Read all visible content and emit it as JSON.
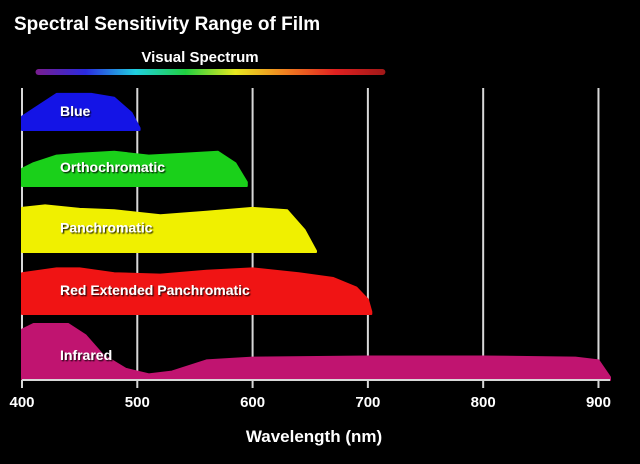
{
  "chart_data": {
    "type": "area",
    "title": "Spectral Sensitivity Range of Film",
    "subtitle": "Visual Spectrum",
    "xlabel": "Wavelength (nm)",
    "ylabel": "",
    "xlim": [
      400,
      910
    ],
    "x_ticks": [
      400,
      500,
      600,
      700,
      800,
      900
    ],
    "x_tick_labels": [
      "400",
      "500",
      "600",
      "700",
      "800",
      "900"
    ],
    "grid": true,
    "legend": "none",
    "background_color": "#000000",
    "text_color": "#ffffff",
    "visual_spectrum": {
      "x_start": 410,
      "x_end": 710,
      "colors": [
        "#7a1d8f",
        "#2a2ae0",
        "#20d0e0",
        "#20d040",
        "#e8e820",
        "#f08020",
        "#e02020",
        "#a01818"
      ]
    },
    "series": [
      {
        "name": "Blue",
        "color": "#1414e6",
        "x": [
          400,
          410,
          430,
          460,
          480,
          495,
          502,
          502,
          400
        ],
        "y": [
          0.35,
          0.55,
          0.95,
          0.95,
          0.85,
          0.45,
          0.05,
          0,
          0
        ]
      },
      {
        "name": "Orthochromatic",
        "color": "#1ad01a",
        "x": [
          400,
          410,
          430,
          450,
          480,
          510,
          540,
          570,
          585,
          595,
          595,
          400
        ],
        "y": [
          0.45,
          0.6,
          0.8,
          0.85,
          0.9,
          0.8,
          0.85,
          0.9,
          0.6,
          0.1,
          0,
          0
        ]
      },
      {
        "name": "Panchromatic",
        "color": "#f0f000",
        "x": [
          400,
          420,
          450,
          480,
          520,
          560,
          600,
          630,
          645,
          655,
          655,
          400
        ],
        "y": [
          0.9,
          0.95,
          0.88,
          0.85,
          0.75,
          0.82,
          0.9,
          0.85,
          0.45,
          0.02,
          0,
          0
        ]
      },
      {
        "name": "Red Extended Panchromatic",
        "color": "#f01414",
        "x": [
          400,
          430,
          450,
          480,
          520,
          560,
          600,
          640,
          670,
          690,
          700,
          703,
          703,
          400
        ],
        "y": [
          0.85,
          0.95,
          0.95,
          0.85,
          0.82,
          0.9,
          0.95,
          0.85,
          0.75,
          0.55,
          0.3,
          0.05,
          0,
          0
        ]
      },
      {
        "name": "Infrared",
        "color": "#c01470",
        "x": [
          400,
          410,
          440,
          455,
          470,
          490,
          510,
          530,
          560,
          600,
          700,
          800,
          880,
          900,
          910,
          910,
          400
        ],
        "y": [
          0.9,
          1.0,
          1.0,
          0.8,
          0.45,
          0.2,
          0.1,
          0.15,
          0.35,
          0.4,
          0.42,
          0.42,
          0.4,
          0.35,
          0.05,
          0,
          0
        ]
      }
    ]
  }
}
